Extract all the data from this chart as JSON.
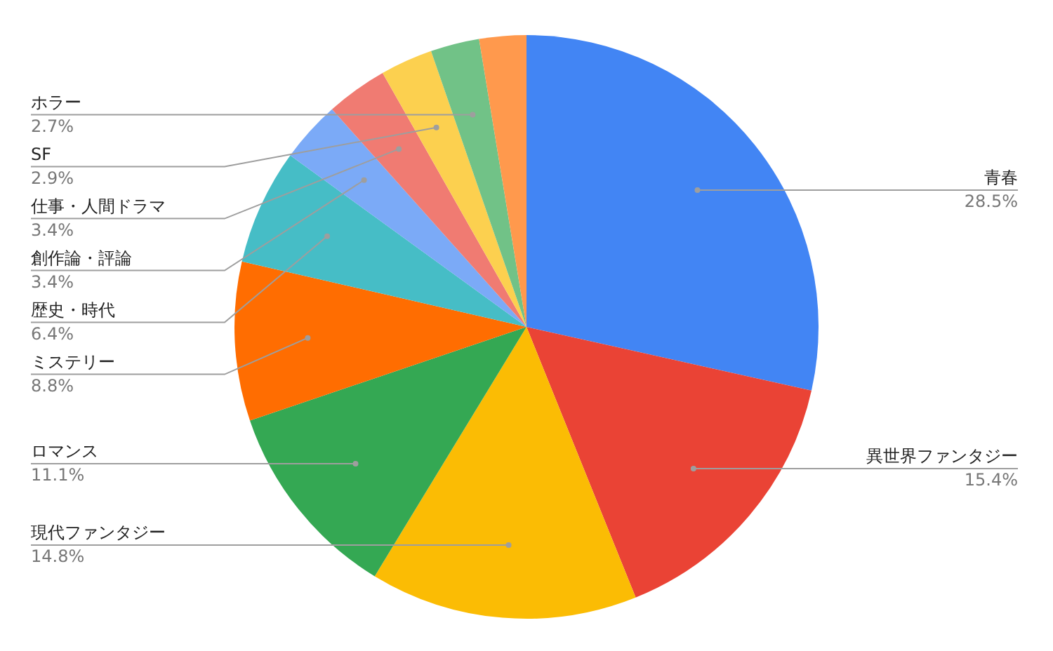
{
  "chart_data": {
    "type": "pie",
    "categories": [
      "青春",
      "異世界ファンタジー",
      "現代ファンタジー",
      "ロマンス",
      "ミステリー",
      "歴史・時代",
      "創作論・評論",
      "仕事・人間ドラマ",
      "SF",
      "ホラー",
      null
    ],
    "values": [
      28.5,
      15.4,
      14.8,
      11.1,
      8.8,
      6.4,
      3.4,
      3.4,
      2.9,
      2.7,
      2.6
    ],
    "value_labels": [
      "28.5%",
      "15.4%",
      "14.8%",
      "11.1%",
      "8.8%",
      "6.4%",
      "3.4%",
      "3.4%",
      "2.9%",
      "2.7%",
      null
    ],
    "colors": [
      "#4285f4",
      "#ea4335",
      "#fbbc04",
      "#34a853",
      "#ff6d01",
      "#46bdc6",
      "#7baaf7",
      "#f07b72",
      "#fcd04f",
      "#71c287",
      "#ff994d"
    ],
    "legend": false
  }
}
